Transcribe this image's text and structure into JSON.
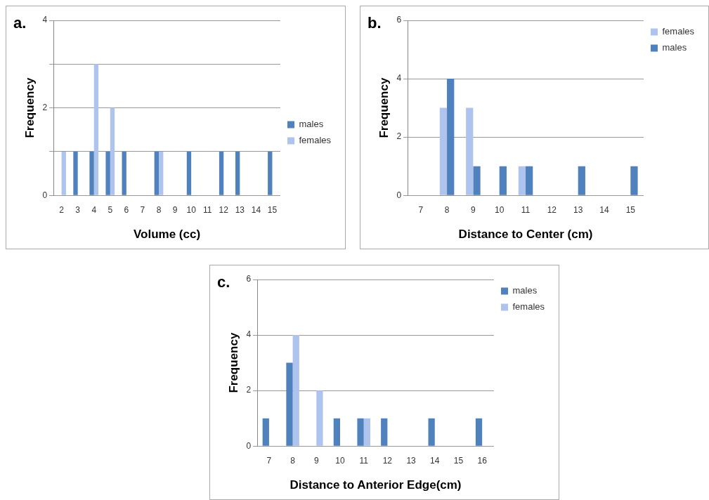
{
  "chart_data": [
    {
      "type": "bar",
      "title": "a.",
      "xlabel": "Volume (cc)",
      "ylabel": "Frequency",
      "categories": [
        "2",
        "3",
        "4",
        "5",
        "6",
        "7",
        "8",
        "9",
        "10",
        "11",
        "12",
        "13",
        "14",
        "15"
      ],
      "series": [
        {
          "name": "males",
          "color": "#4f81bd",
          "values": [
            0,
            1,
            1,
            1,
            1,
            0,
            1,
            0,
            1,
            0,
            1,
            1,
            0,
            1
          ]
        },
        {
          "name": "females",
          "color": "#aec3ee",
          "values": [
            1,
            0,
            3,
            2,
            0,
            0,
            1,
            0,
            0,
            0,
            0,
            0,
            0,
            0
          ]
        }
      ],
      "ylim": [
        0,
        4
      ],
      "yticks": [
        0,
        {
          "value": 1,
          "label": null
        },
        2,
        {
          "value": 3,
          "label": null
        },
        4
      ],
      "grid": "y",
      "legend": "right"
    },
    {
      "type": "bar",
      "title": "b.",
      "xlabel": "Distance to Center (cm)",
      "ylabel": "Frequency",
      "categories": [
        "7",
        "8",
        "9",
        "10",
        "11",
        "12",
        "13",
        "14",
        "15"
      ],
      "series": [
        {
          "name": "females",
          "color": "#aec3ee",
          "values": [
            0,
            3,
            3,
            0,
            1,
            0,
            0,
            0,
            0
          ]
        },
        {
          "name": "males",
          "color": "#4f81bd",
          "values": [
            0,
            4,
            1,
            1,
            1,
            0,
            1,
            0,
            1
          ]
        }
      ],
      "ylim": [
        0,
        6
      ],
      "yticks": [
        0,
        2,
        4,
        6
      ],
      "grid": "y",
      "legend": "top right"
    },
    {
      "type": "bar",
      "title": "c.",
      "xlabel": "Distance to Anterior Edge(cm)",
      "ylabel": "Frequency",
      "categories": [
        "7",
        "8",
        "9",
        "10",
        "11",
        "12",
        "13",
        "14",
        "15",
        "16"
      ],
      "series": [
        {
          "name": "males",
          "color": "#4f81bd",
          "values": [
            1,
            3,
            0,
            1,
            1,
            1,
            0,
            1,
            0,
            1
          ]
        },
        {
          "name": "females",
          "color": "#aec3ee",
          "values": [
            0,
            4,
            2,
            0,
            1,
            0,
            0,
            0,
            0,
            0
          ]
        }
      ],
      "ylim": [
        0,
        6
      ],
      "yticks": [
        0,
        2,
        4,
        6
      ],
      "grid": "y",
      "legend": "top right"
    }
  ]
}
